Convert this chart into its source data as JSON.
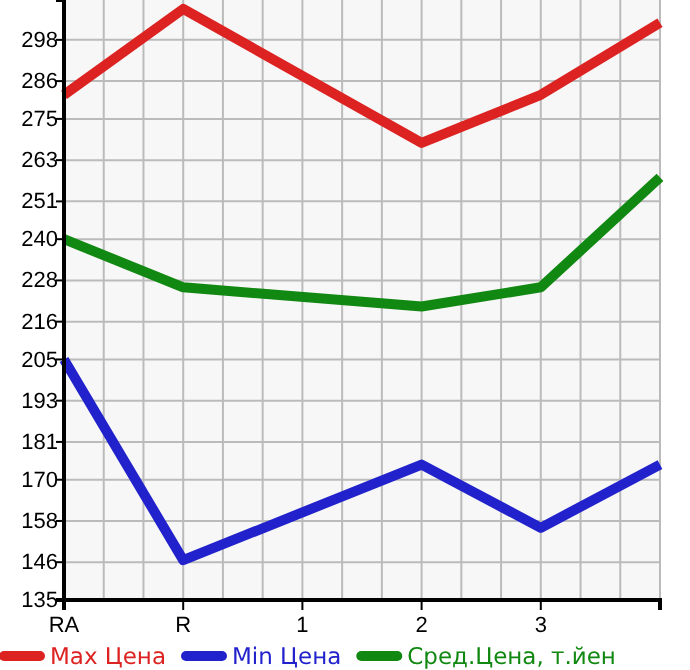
{
  "chart_data": {
    "type": "line",
    "categories": [
      "RA",
      "R",
      "1",
      "2",
      "3",
      null
    ],
    "series": [
      {
        "name": "Max Цена",
        "color": "#dd2222",
        "values": [
          282,
          307,
          null,
          268,
          282,
          303
        ]
      },
      {
        "name": "Min Цена",
        "color": "#2222cc",
        "values": [
          205,
          146.6,
          null,
          174.4,
          156,
          174.4
        ]
      },
      {
        "name": "Сред.Цена, т.йен",
        "color": "#118811",
        "values": [
          240,
          226,
          null,
          220.4,
          226,
          258
        ]
      }
    ],
    "ylim": [
      135,
      309.6
    ],
    "yticks": [
      135,
      146,
      158,
      170,
      181,
      193,
      205,
      216,
      228,
      240,
      251,
      263,
      275,
      286,
      298
    ],
    "grid": true,
    "legend": "bottom",
    "marker": "none",
    "line_style": "solid"
  }
}
